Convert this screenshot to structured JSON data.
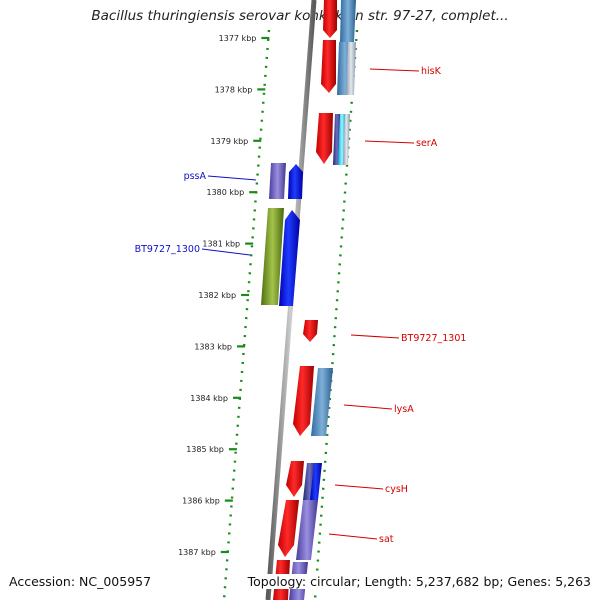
{
  "title": "Bacillus thuringiensis serovar konkukian str. 97-27, complet...",
  "footer": {
    "accession": "Accession: NC_005957",
    "topology": "Topology: circular; Length: 5,237,682 bp; Genes: 5,263"
  },
  "scale": {
    "labels": [
      "1377 kbp",
      "1378 kbp",
      "1379 kbp",
      "1380 kbp",
      "1381 kbp",
      "1382 kbp",
      "1383 kbp",
      "1384 kbp",
      "1385 kbp",
      "1386 kbp",
      "1387 kbp"
    ]
  },
  "gene_labels": [
    {
      "text": "hisK",
      "side": "right",
      "color": "#d40000"
    },
    {
      "text": "serA",
      "side": "right",
      "color": "#d40000"
    },
    {
      "text": "pssA",
      "side": "left",
      "color": "#1010c8"
    },
    {
      "text": "BT9727_1300",
      "side": "left",
      "color": "#1010c8"
    },
    {
      "text": "BT9727_1301",
      "side": "right",
      "color": "#d40000"
    },
    {
      "text": "lysA",
      "side": "right",
      "color": "#d40000"
    },
    {
      "text": "cysH",
      "side": "right",
      "color": "#d40000"
    },
    {
      "text": "sat",
      "side": "right",
      "color": "#d40000"
    }
  ],
  "colors": {
    "forward_gene": "#e00000",
    "reverse_gene": "#0000e8",
    "backbone": "#777777",
    "dotted_guide": "#1a8a1a",
    "cog_blue": "#4f86b8",
    "cog_purple": "#6a5db8",
    "cog_olive": "#6d8e1f",
    "cog_cyan": "#19d0ee",
    "cog_navy": "#2e3488"
  }
}
